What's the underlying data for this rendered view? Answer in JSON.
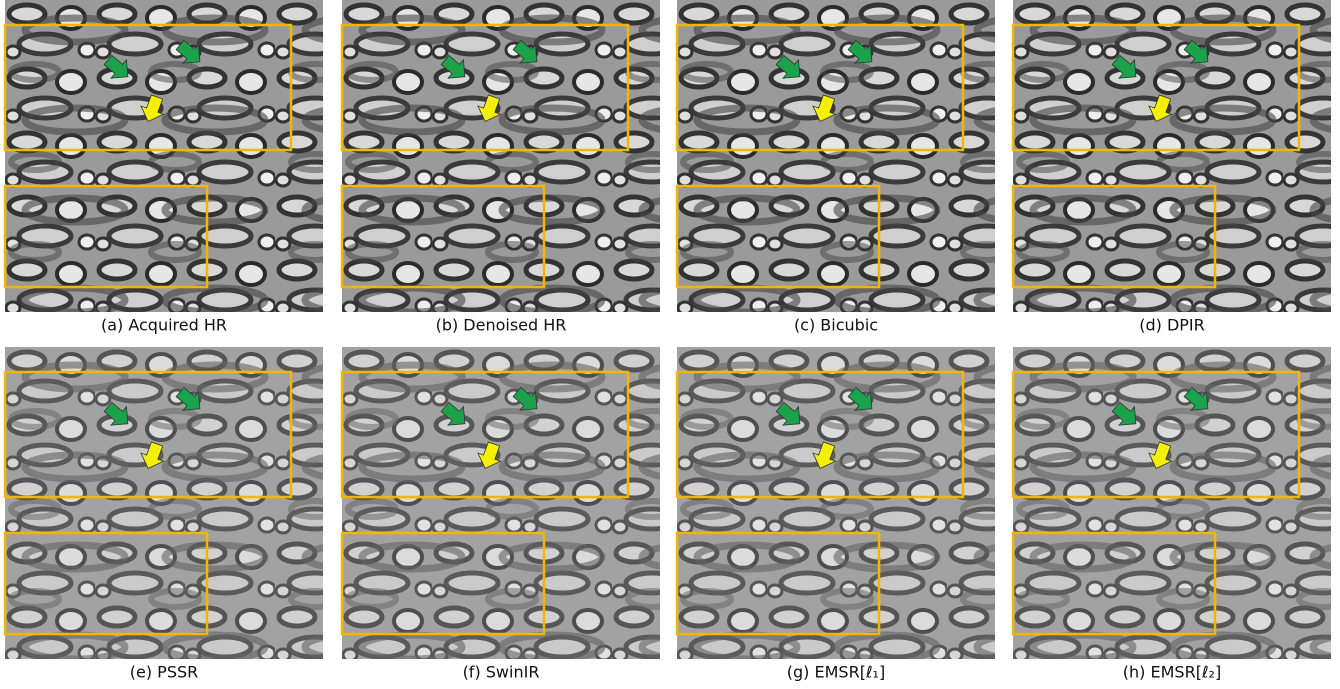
{
  "panels": [
    {
      "caption": "(a) Acquired HR"
    },
    {
      "caption": "(b) Denoised HR"
    },
    {
      "caption": "(c) Bicubic"
    },
    {
      "caption": "(d) DPIR"
    },
    {
      "caption": "(e) PSSR"
    },
    {
      "caption": "(f) SwinIR"
    },
    {
      "caption": "(g) EMSR[ℓ₁]"
    },
    {
      "caption": "(h) EMSR[ℓ₂]"
    }
  ]
}
